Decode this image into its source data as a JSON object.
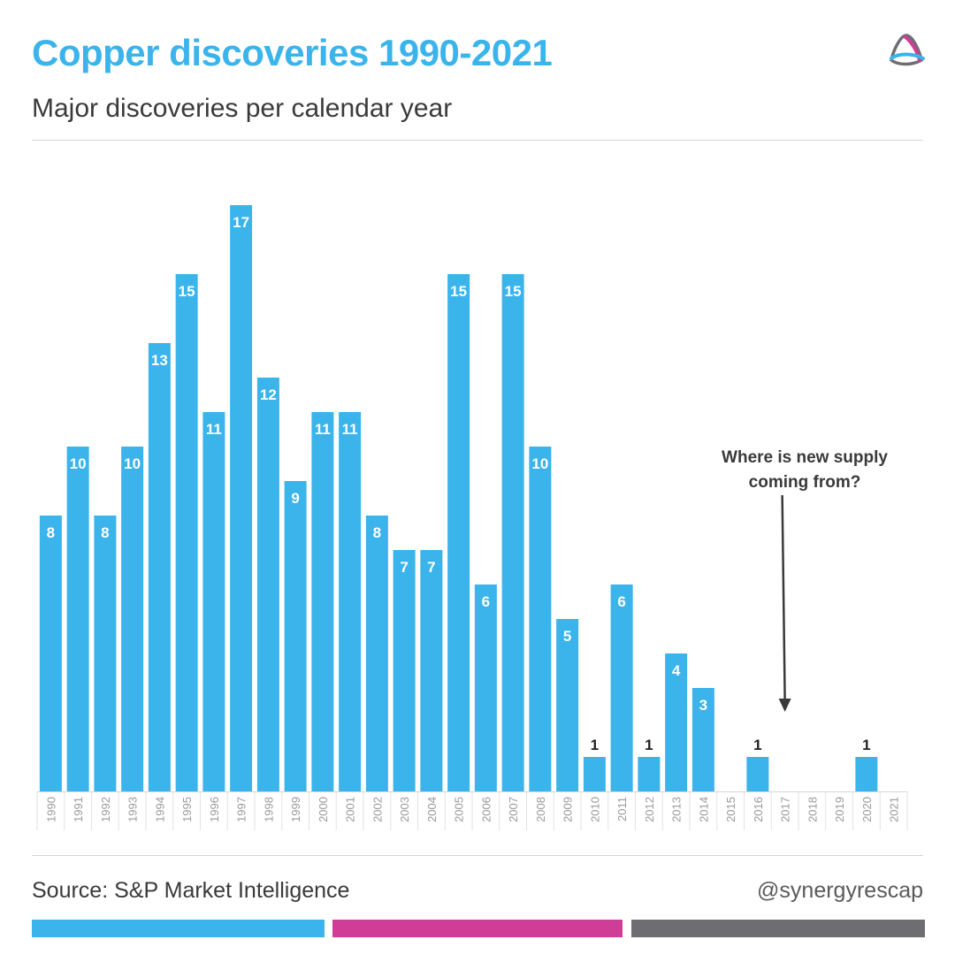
{
  "header": {
    "title": "Copper discoveries 1990-2021",
    "subtitle": "Major discoveries per calendar year"
  },
  "footer": {
    "source": "Source: S&P Market Intelligence",
    "handle": "@synergyrescap"
  },
  "colors": {
    "bar": "#3bb4ec",
    "title": "#3bb4ec",
    "stripe_blue": "#3bb4ec",
    "stripe_magenta": "#cf3d96",
    "stripe_gray": "#6e6e72",
    "label_light": "#ffffff",
    "label_dark": "#222222",
    "annotation": "#3a3a3a"
  },
  "logo_icon": "triangle-loop-logo",
  "chart_data": {
    "type": "bar",
    "title": "Copper discoveries 1990-2021",
    "subtitle": "Major discoveries per calendar year",
    "xlabel": "",
    "ylabel": "",
    "categories": [
      "1990",
      "1991",
      "1992",
      "1993",
      "1994",
      "1995",
      "1996",
      "1997",
      "1998",
      "1999",
      "2000",
      "2001",
      "2002",
      "2003",
      "2004",
      "2005",
      "2006",
      "2007",
      "2008",
      "2009",
      "2010",
      "2011",
      "2012",
      "2013",
      "2014",
      "2015",
      "2016",
      "2017",
      "2018",
      "2019",
      "2020",
      "2021"
    ],
    "values": [
      8,
      10,
      8,
      10,
      13,
      15,
      11,
      17,
      12,
      9,
      11,
      11,
      8,
      7,
      7,
      15,
      6,
      15,
      10,
      5,
      1,
      6,
      1,
      4,
      3,
      0,
      1,
      0,
      0,
      0,
      1,
      0
    ],
    "ylim": [
      0,
      17
    ],
    "grid": false,
    "legend": "none",
    "annotation": {
      "text_line1": "Where is new supply",
      "text_line2": "coming from?",
      "arrow_target_category": "2017"
    }
  }
}
